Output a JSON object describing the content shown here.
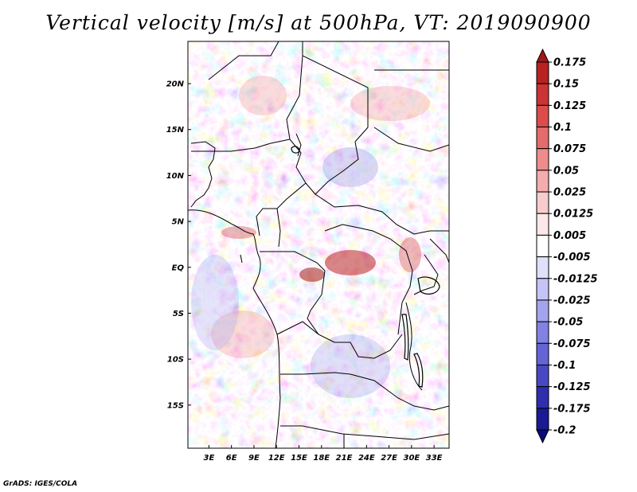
{
  "title": "Vertical velocity [m/s] at 500hPa, VT: 2019090900",
  "credit": "GrADS: IGES/COLA",
  "map": {
    "lat_labels": [
      "20N",
      "15N",
      "10N",
      "5N",
      "EQ",
      "5S",
      "10S",
      "15S"
    ],
    "lat_values": [
      20,
      15,
      10,
      5,
      0,
      -5,
      -10,
      -15
    ],
    "lon_labels": [
      "3E",
      "6E",
      "9E",
      "12E",
      "15E",
      "18E",
      "21E",
      "24E",
      "27E",
      "30E",
      "33E"
    ],
    "lon_values": [
      3,
      6,
      9,
      12,
      15,
      18,
      21,
      24,
      27,
      30,
      33
    ],
    "lat_range": [
      -19.7,
      24.6
    ],
    "lon_range": [
      0.2,
      35.0
    ]
  },
  "colorbar": {
    "labels": [
      "0.175",
      "0.15",
      "0.125",
      "0.1",
      "0.075",
      "0.05",
      "0.025",
      "0.0125",
      "0.005",
      "-0.005",
      "-0.0125",
      "-0.025",
      "-0.05",
      "-0.075",
      "-0.1",
      "-0.125",
      "-0.175",
      "-0.2"
    ],
    "colors": [
      "#a01818",
      "#b82222",
      "#cc3434",
      "#dc4c4c",
      "#e46c6c",
      "#ee8c8c",
      "#f4acac",
      "#f8cccc",
      "#fce8e8",
      "#ffffff",
      "#e0e0fc",
      "#c4c4f6",
      "#a4a4ee",
      "#8282e2",
      "#6464d6",
      "#4848c4",
      "#2e2eae",
      "#1a1a92",
      "#0c0c78"
    ]
  }
}
